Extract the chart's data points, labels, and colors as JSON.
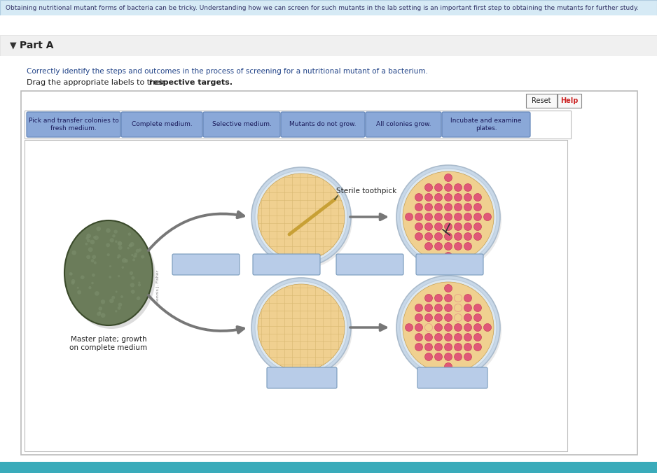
{
  "bg_color": "#ffffff",
  "top_banner_bg": "#d6eaf5",
  "top_banner_text": "Obtaining nutritional mutant forms of bacteria can be tricky. Understanding how we can screen for such mutants in the lab setting is an important first step to obtaining the mutants for further study.",
  "part_a_bg": "#f0f0f0",
  "part_a_text": "Part A",
  "instruction1": "Correctly identify the steps and outcomes in the process of screening for a nutritional mutant of a bacterium.",
  "instruction2_plain": "Drag the appropriate labels to their ",
  "instruction2_bold": "respective targets.",
  "reset_text": "Reset",
  "help_text": "Help",
  "drag_labels": [
    "Pick and transfer colonies to\nfresh medium.",
    "Complete medium.",
    "Selective medium.",
    "Mutants do not grow.",
    "All colonies grow.",
    "Incubate and examine\nplates."
  ],
  "drag_label_bg": "#8aa8d8",
  "drag_label_text": "#1a1a5a",
  "drag_label_border": "#6688bb",
  "diagram_bg": "#ffffff",
  "diagram_border": "#bbbbbb",
  "master_plate_color1": "#6b7c5a",
  "master_plate_color2": "#7a8c6a",
  "master_plate_label": "Master plate; growth\non complete medium",
  "sterile_toothpick_label": "Sterile toothpick",
  "plate_agar_color": "#f0d090",
  "plate_rim_outer": "#c8d8e8",
  "plate_rim_inner": "#dde8f0",
  "colony_pink": "#e05878",
  "colony_border": "#c03050",
  "empty_colony_color": "#f0c0a0",
  "arrow_color": "#888888",
  "box_fill": "#b8cce8",
  "box_border": "#7799bb",
  "bottom_teal": "#3aabba",
  "toothpick_color": "#c8a035"
}
